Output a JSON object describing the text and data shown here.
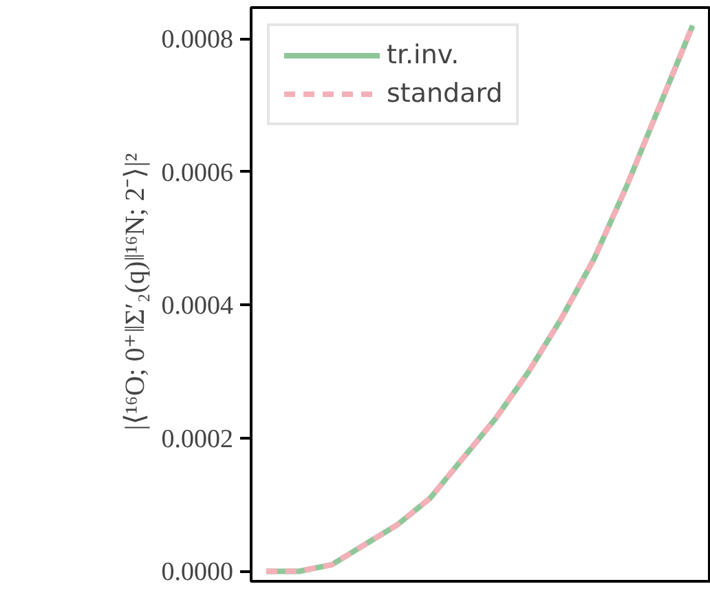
{
  "chart_data": {
    "type": "line",
    "ylabel": "|⟨¹⁶O; 0⁺‖Σ′₂(q)‖¹⁶N; 2⁻⟩|²",
    "categories": [
      null,
      null,
      null,
      null,
      null,
      null,
      null,
      null,
      null,
      null,
      null,
      null,
      null,
      null
    ],
    "series": [
      {
        "name": "tr.inv.",
        "color": "#8fc79a",
        "line_style": "solid",
        "values": [
          0,
          0,
          1e-05,
          4e-05,
          7e-05,
          0.00011,
          0.00017,
          0.00023,
          0.0003,
          0.00038,
          0.00047,
          0.00058,
          0.0007,
          0.00082
        ]
      },
      {
        "name": "standard",
        "color": "#f4b0b8",
        "line_style": "dashed",
        "values": [
          0,
          0,
          1e-05,
          4e-05,
          7e-05,
          0.00011,
          0.00017,
          0.00023,
          0.0003,
          0.00038,
          0.00047,
          0.00058,
          0.0007,
          0.00082
        ]
      }
    ],
    "ylim": [
      -1.5e-05,
      0.000847
    ],
    "yticks": [
      {
        "value": 0,
        "label": "0.0000"
      },
      {
        "value": 0.0002,
        "label": "0.0002"
      },
      {
        "value": 0.0004,
        "label": "0.0004"
      },
      {
        "value": 0.0006,
        "label": "0.0006"
      },
      {
        "value": 0.0008,
        "label": "0.0008"
      }
    ],
    "grid": false,
    "legend": "top left",
    "marker": "none"
  }
}
